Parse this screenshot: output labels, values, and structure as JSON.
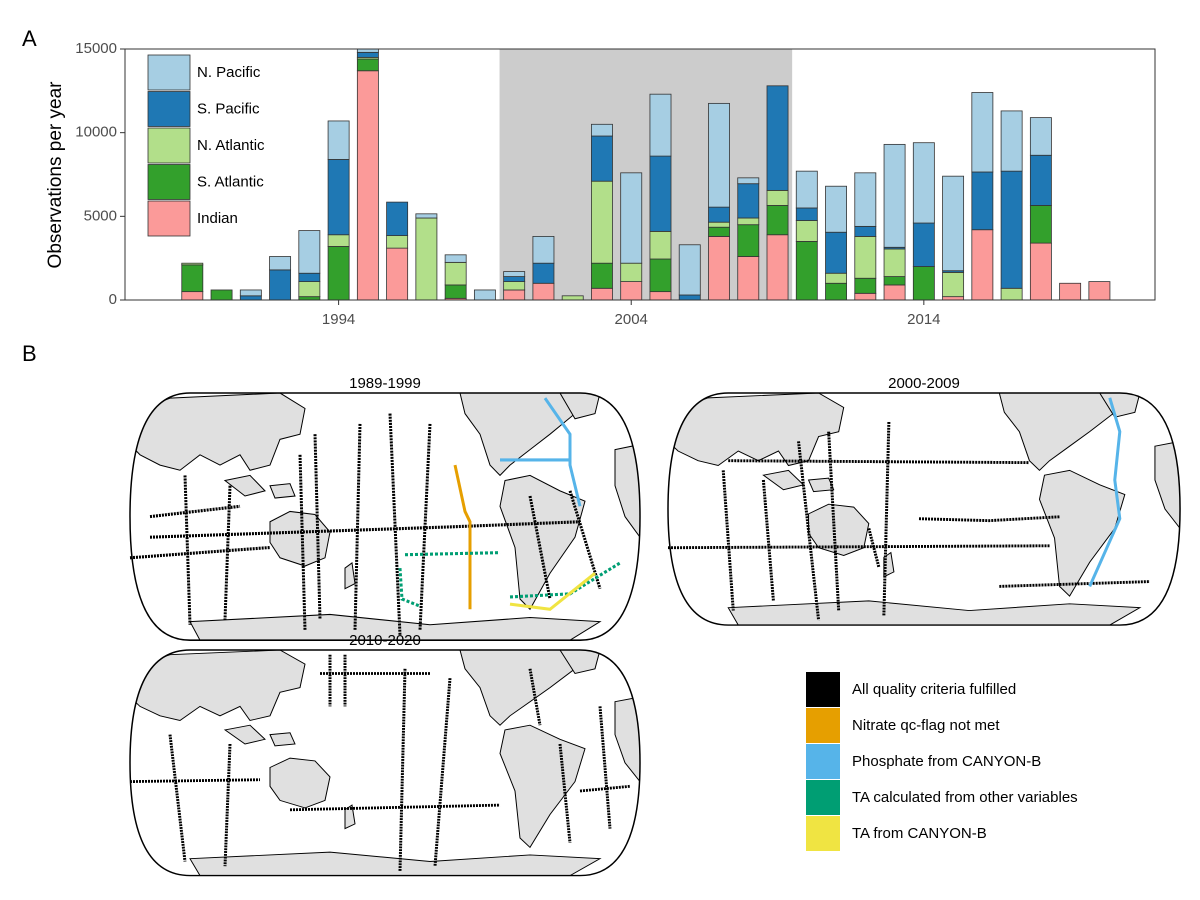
{
  "chart_data": {
    "type": "bar",
    "stacked": true,
    "panel_labels": [
      "A",
      "B"
    ],
    "ylabel": "Observations per year",
    "x": [
      1989,
      1990,
      1991,
      1992,
      1993,
      1994,
      1995,
      1996,
      1997,
      1998,
      1999,
      2000,
      2001,
      2002,
      2003,
      2004,
      2005,
      2006,
      2007,
      2008,
      2009,
      2010,
      2011,
      2012,
      2013,
      2014,
      2015,
      2016,
      2017,
      2018,
      2019,
      2020
    ],
    "xlim": [
      1986.7,
      2021.9
    ],
    "xticks": [
      1994,
      2004,
      2014
    ],
    "ylim": [
      0,
      15000
    ],
    "yticks": [
      0,
      5000,
      10000,
      15000
    ],
    "highlight_range": [
      1999.5,
      2009.5
    ],
    "highlight_color": "#cccccc",
    "legend": "top-left",
    "series": [
      {
        "name": "N. Pacific",
        "color": "#a6cee3",
        "values": [
          0,
          0,
          350,
          800,
          2550,
          2300,
          500,
          0,
          250,
          450,
          600,
          300,
          1600,
          0,
          700,
          5400,
          3700,
          3000,
          6200,
          350,
          0,
          2200,
          2750,
          3200,
          6150,
          4800,
          5650,
          4750,
          3600,
          2250,
          0,
          0
        ]
      },
      {
        "name": "S. Pacific",
        "color": "#1f78b4",
        "values": [
          0,
          0,
          250,
          1800,
          500,
          4500,
          300,
          2000,
          0,
          0,
          0,
          300,
          1200,
          0,
          2700,
          0,
          4500,
          300,
          900,
          2050,
          6250,
          750,
          2450,
          600,
          100,
          2600,
          100,
          3450,
          7000,
          3000,
          0,
          0
        ]
      },
      {
        "name": "N. Atlantic",
        "color": "#b2df8a",
        "values": [
          100,
          0,
          0,
          0,
          900,
          700,
          100,
          750,
          4900,
          1350,
          0,
          500,
          0,
          250,
          4900,
          1100,
          1650,
          0,
          300,
          400,
          900,
          1250,
          600,
          2500,
          1650,
          0,
          1450,
          0,
          700,
          0,
          0,
          0
        ]
      },
      {
        "name": "S. Atlantic",
        "color": "#33a02c",
        "values": [
          1600,
          600,
          0,
          0,
          200,
          3200,
          700,
          0,
          0,
          800,
          0,
          0,
          0,
          0,
          1500,
          0,
          1950,
          0,
          550,
          1900,
          1750,
          3500,
          1000,
          900,
          500,
          2000,
          0,
          0,
          0,
          2250,
          0,
          0
        ]
      },
      {
        "name": "Indian",
        "color": "#fb9a99",
        "values": [
          500,
          0,
          0,
          0,
          0,
          0,
          13700,
          3100,
          0,
          100,
          0,
          600,
          1000,
          0,
          700,
          1100,
          500,
          0,
          3800,
          2600,
          3900,
          0,
          0,
          400,
          900,
          0,
          200,
          4200,
          0,
          3400,
          1000,
          1100
        ]
      }
    ],
    "maps": [
      {
        "title": "1989-1999"
      },
      {
        "title": "2000-2009"
      },
      {
        "title": "2010-2020"
      }
    ],
    "map_legend": [
      {
        "label": "All quality criteria fulfilled",
        "color": "#000000"
      },
      {
        "label": "Nitrate qc-flag not met",
        "color": "#E69F00"
      },
      {
        "label": "Phosphate from CANYON-B",
        "color": "#56B4E9"
      },
      {
        "label": "TA calculated from other variables",
        "color": "#009E73"
      },
      {
        "label": "TA from CANYON-B",
        "color": "#F0E442"
      }
    ]
  }
}
